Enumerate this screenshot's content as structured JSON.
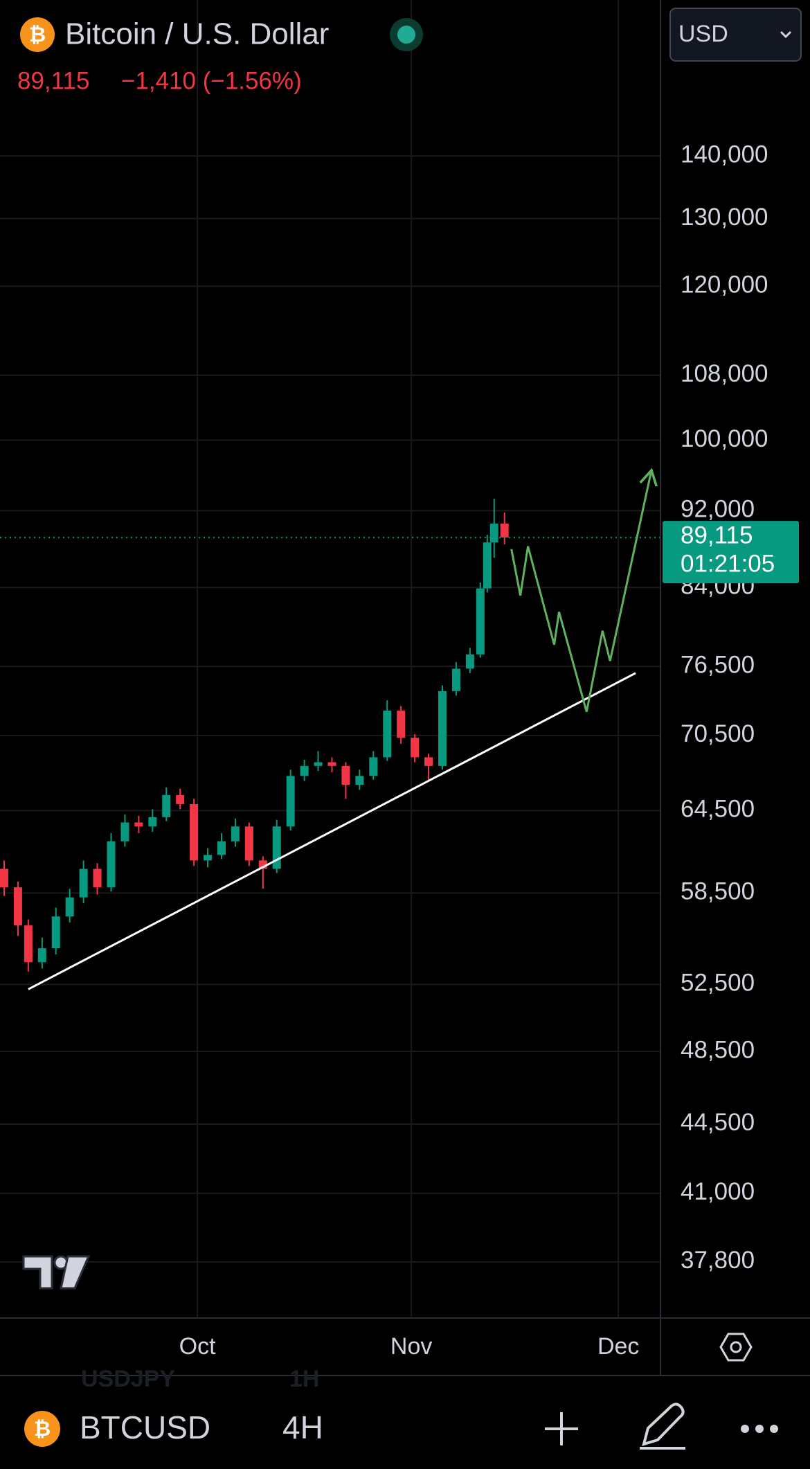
{
  "header": {
    "logo": "₿",
    "title": "Bitcoin / U.S. Dollar",
    "price": "89,115",
    "change": "−1,410 (−1.56%)",
    "currency": "USD"
  },
  "chart_data": {
    "type": "candlestick",
    "log_scale": true,
    "grid": true,
    "up_color": "#089981",
    "down_color": "#f23645",
    "xlim": [
      -28.6,
      67.1
    ],
    "xticks": [
      {
        "value": 0,
        "label": "Oct"
      },
      {
        "value": 31,
        "label": "Nov"
      },
      {
        "value": 61,
        "label": "Dec"
      }
    ],
    "ylim": [
      35370,
      168400
    ],
    "yticks": [
      {
        "value": 140000,
        "label": "140,000"
      },
      {
        "value": 130000,
        "label": "130,000"
      },
      {
        "value": 120000,
        "label": "120,000"
      },
      {
        "value": 108000,
        "label": "108,000"
      },
      {
        "value": 100000,
        "label": "100,000"
      },
      {
        "value": 92000,
        "label": "92,000"
      },
      {
        "value": 84000,
        "label": "84,000"
      },
      {
        "value": 76500,
        "label": "76,500"
      },
      {
        "value": 70500,
        "label": "70,500"
      },
      {
        "value": 64500,
        "label": "64,500"
      },
      {
        "value": 58500,
        "label": "58,500"
      },
      {
        "value": 52500,
        "label": "52,500"
      },
      {
        "value": 48500,
        "label": "48,500"
      },
      {
        "value": 44500,
        "label": "44,500"
      },
      {
        "value": 41000,
        "label": "41,000"
      },
      {
        "value": 37800,
        "label": "37,800"
      }
    ],
    "candles": {
      "x": [
        -28,
        -26,
        -24.5,
        -22.5,
        -20.5,
        -18.5,
        -16.5,
        -14.5,
        -12.5,
        -10.5,
        -8.5,
        -6.5,
        -4.5,
        -2.5,
        -0.5,
        1.5,
        3.5,
        5.5,
        7.5,
        9.5,
        11.5,
        13.5,
        15.5,
        17.5,
        19.5,
        21.5,
        23.5,
        25.5,
        27.5,
        29.5,
        31.5,
        33.5,
        35.5,
        37.5,
        39.5,
        41,
        42,
        43,
        44.5
      ],
      "open": [
        60200,
        58900,
        56300,
        53900,
        54800,
        56900,
        58200,
        60200,
        58900,
        62200,
        63600,
        63300,
        64000,
        65700,
        65000,
        60800,
        61200,
        62200,
        63300,
        60800,
        60200,
        63300,
        67200,
        68000,
        68300,
        68000,
        66500,
        67200,
        68700,
        72600,
        70300,
        68700,
        68000,
        74300,
        76300,
        77600,
        83900,
        88600,
        90600
      ],
      "high": [
        60800,
        59300,
        56700,
        55500,
        57500,
        58800,
        60800,
        60600,
        62800,
        64200,
        64100,
        64600,
        66300,
        66200,
        65400,
        61700,
        62800,
        63900,
        63600,
        61100,
        63800,
        67700,
        68500,
        69200,
        68700,
        68300,
        67700,
        69200,
        73500,
        73000,
        70600,
        69000,
        74800,
        76900,
        78200,
        84500,
        89400,
        93300,
        91800
      ],
      "low": [
        58300,
        55600,
        53300,
        53500,
        54400,
        56500,
        57800,
        58400,
        58600,
        61800,
        62800,
        62900,
        63700,
        64600,
        60400,
        60300,
        60900,
        61800,
        60400,
        58800,
        59900,
        63000,
        66800,
        67600,
        67500,
        65400,
        66100,
        66900,
        68400,
        69800,
        68300,
        66800,
        67700,
        73900,
        75900,
        77300,
        83500,
        87000,
        88400
      ],
      "close": [
        58900,
        56300,
        53900,
        54800,
        56900,
        58200,
        60200,
        58900,
        62200,
        63600,
        63300,
        64000,
        65700,
        65000,
        60800,
        61200,
        62200,
        63300,
        60800,
        60200,
        63300,
        67200,
        68000,
        68300,
        68000,
        66500,
        67200,
        68700,
        72600,
        70300,
        68700,
        68000,
        74300,
        76300,
        77600,
        83900,
        88600,
        90600,
        89115
      ]
    },
    "last_price": {
      "value": 89115,
      "label": "89,115"
    },
    "countdown": "01:21:05",
    "lines": [
      {
        "color": "#ffffff",
        "x": [
          -24.5,
          63.5
        ],
        "y": [
          52200,
          75900
        ]
      },
      {
        "color": "#5fb35f",
        "x": [
          45.5,
          46.8,
          47.9,
          51.7,
          52.4,
          56.4,
          58.7,
          59.8,
          65.8
        ],
        "y": [
          87900,
          83200,
          88200,
          78500,
          81600,
          72500,
          79800,
          77000,
          96500
        ]
      }
    ]
  },
  "footer": {
    "logo": "₿",
    "symbol": "BTCUSD",
    "interval": "4H",
    "ghost_symbol": "USDJPY",
    "ghost_interval": "1H"
  }
}
